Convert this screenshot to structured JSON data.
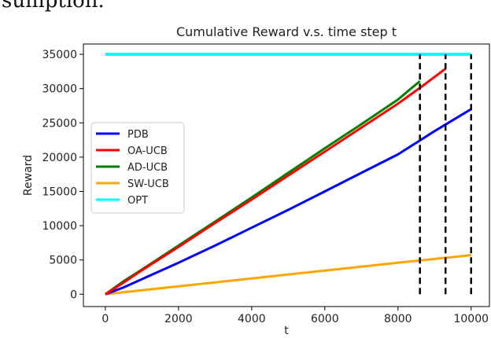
{
  "page": {
    "top_text": "sumption."
  },
  "chart_data": {
    "type": "line",
    "title": "Cumulative Reward v.s. time step t",
    "xlabel": "t",
    "ylabel": "Reward",
    "xlim": [
      -600,
      10500
    ],
    "ylim": [
      -1800,
      36500
    ],
    "xticks": [
      0,
      2000,
      4000,
      6000,
      8000,
      10000
    ],
    "yticks": [
      0,
      5000,
      10000,
      15000,
      20000,
      25000,
      30000,
      35000
    ],
    "grid": false,
    "legend_position": "center-left",
    "series": [
      {
        "name": "PDB",
        "color": "#0000ff",
        "x": [
          0,
          500,
          1000,
          2000,
          3000,
          4000,
          5000,
          6000,
          7000,
          8000,
          9000,
          10000
        ],
        "y": [
          0,
          1000,
          2200,
          4600,
          7100,
          9700,
          12300,
          15000,
          17700,
          20400,
          23800,
          27000
        ]
      },
      {
        "name": "OA-UCB",
        "color": "#ff0000",
        "x": [
          0,
          500,
          1000,
          2000,
          3000,
          4000,
          5000,
          6000,
          7000,
          8000,
          8650,
          9300
        ],
        "y": [
          0,
          1700,
          3500,
          6900,
          10400,
          13800,
          17300,
          20800,
          24300,
          27800,
          30300,
          32900
        ]
      },
      {
        "name": "AD-UCB",
        "color": "#008000",
        "x": [
          0,
          500,
          1000,
          2000,
          3000,
          4000,
          5000,
          6000,
          7000,
          8000,
          8600
        ],
        "y": [
          0,
          1900,
          3600,
          7100,
          10600,
          14100,
          17700,
          21300,
          24800,
          28400,
          31100
        ]
      },
      {
        "name": "SW-UCB",
        "color": "#ffa500",
        "x": [
          0,
          2000,
          4000,
          6000,
          8000,
          10000
        ],
        "y": [
          0,
          1150,
          2300,
          3450,
          4600,
          5700
        ]
      },
      {
        "name": "OPT",
        "color": "#00ffff",
        "x": [
          0,
          10000
        ],
        "y": [
          35000,
          35000
        ]
      }
    ],
    "vlines": [
      {
        "x": 8600,
        "ymin": 0,
        "ymax": 35000,
        "style": "dashed",
        "color": "#000000"
      },
      {
        "x": 9300,
        "ymin": 0,
        "ymax": 35000,
        "style": "dashed",
        "color": "#000000"
      },
      {
        "x": 10000,
        "ymin": 0,
        "ymax": 35000,
        "style": "dashed",
        "color": "#000000"
      }
    ]
  }
}
